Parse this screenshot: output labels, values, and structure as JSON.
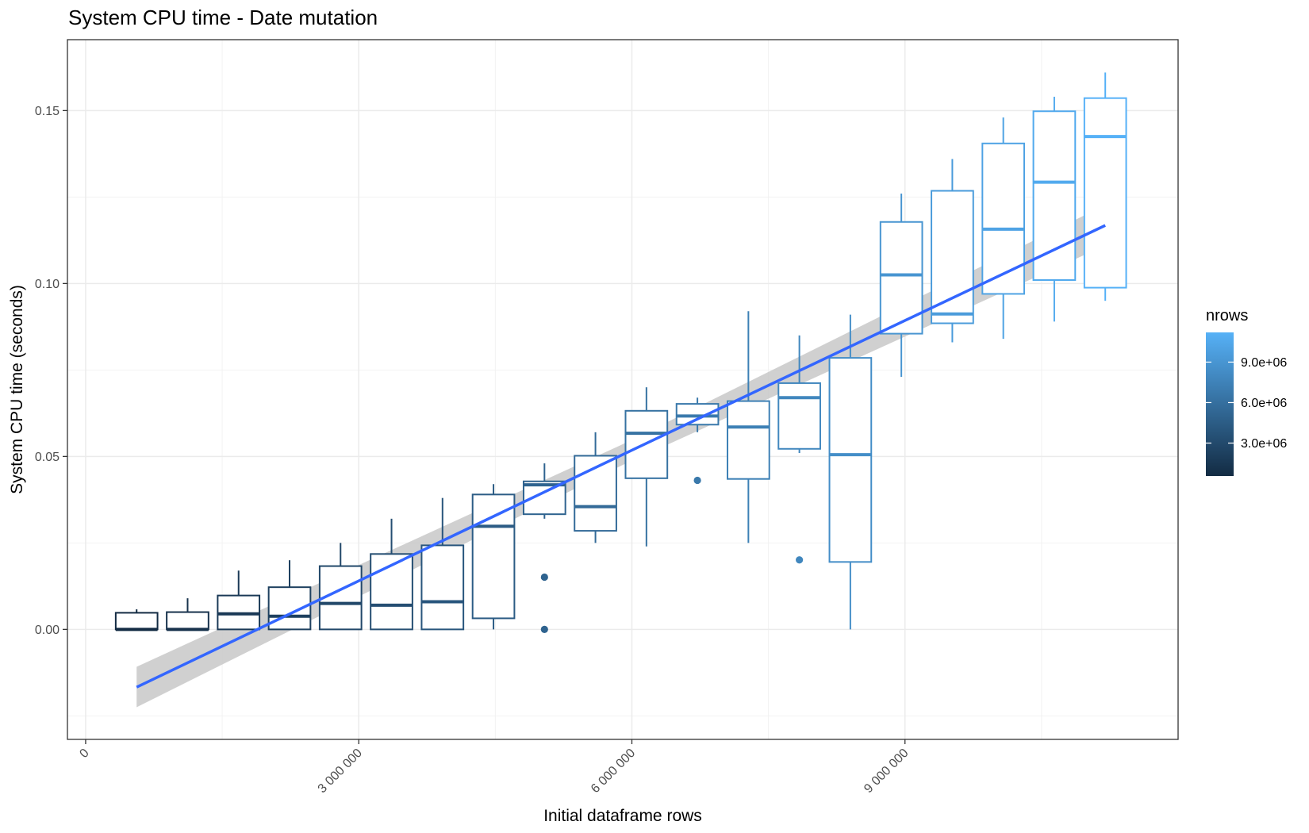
{
  "chart_data": {
    "type": "box",
    "title": "System CPU time - Date mutation",
    "xlabel": "Initial dataframe rows",
    "ylabel": "System CPU time (seconds)",
    "xlim": [
      -200000,
      12000000
    ],
    "ylim": [
      -0.0318,
      0.1705
    ],
    "x_ticks": [
      {
        "value": 0,
        "label": "0"
      },
      {
        "value": 3000000,
        "label": "3 000 000"
      },
      {
        "value": 6000000,
        "label": "6 000 000"
      },
      {
        "value": 9000000,
        "label": "9 000 000"
      }
    ],
    "y_ticks": [
      {
        "value": 0.0,
        "label": "0.00"
      },
      {
        "value": 0.05,
        "label": "0.05"
      },
      {
        "value": 0.1,
        "label": "0.10"
      },
      {
        "value": 0.15,
        "label": "0.15"
      }
    ],
    "grid": true,
    "color_scale": {
      "name": "nrows",
      "low_color": "#132b43",
      "high_color": "#56b1f7",
      "min": 560000,
      "max": 11200000,
      "legend_ticks": [
        {
          "value": 3000000,
          "label": "3.0e+06"
        },
        {
          "value": 6000000,
          "label": "6.0e+06"
        },
        {
          "value": 9000000,
          "label": "9.0e+06"
        }
      ],
      "legend_position": "right"
    },
    "boxes": [
      {
        "x": 560000,
        "low": 0.0,
        "q1": 0.0,
        "median": 0.0,
        "q3": 0.0048,
        "high": 0.0058,
        "outliers": []
      },
      {
        "x": 1120000,
        "low": 0.0,
        "q1": 0.0,
        "median": 0.0,
        "q3": 0.005,
        "high": 0.009,
        "outliers": []
      },
      {
        "x": 1680000,
        "low": 0.0,
        "q1": 0.0,
        "median": 0.0045,
        "q3": 0.0098,
        "high": 0.017,
        "outliers": []
      },
      {
        "x": 2240000,
        "low": 0.0,
        "q1": 0.0,
        "median": 0.0038,
        "q3": 0.0122,
        "high": 0.02,
        "outliers": []
      },
      {
        "x": 2800000,
        "low": 0.0,
        "q1": 0.0,
        "median": 0.0075,
        "q3": 0.0183,
        "high": 0.025,
        "outliers": []
      },
      {
        "x": 3360000,
        "low": 0.0,
        "q1": 0.0,
        "median": 0.007,
        "q3": 0.0218,
        "high": 0.032,
        "outliers": []
      },
      {
        "x": 3920000,
        "low": 0.0,
        "q1": 0.0,
        "median": 0.008,
        "q3": 0.0243,
        "high": 0.038,
        "outliers": []
      },
      {
        "x": 4480000,
        "low": 0.0,
        "q1": 0.0032,
        "median": 0.0298,
        "q3": 0.039,
        "high": 0.042,
        "outliers": []
      },
      {
        "x": 5040000,
        "low": 0.032,
        "q1": 0.0333,
        "median": 0.0418,
        "q3": 0.0428,
        "high": 0.048,
        "outliers": [
          0.0151,
          0.0
        ]
      },
      {
        "x": 5600000,
        "low": 0.025,
        "q1": 0.0285,
        "median": 0.0355,
        "q3": 0.0502,
        "high": 0.057,
        "outliers": []
      },
      {
        "x": 6160000,
        "low": 0.024,
        "q1": 0.0437,
        "median": 0.0567,
        "q3": 0.0632,
        "high": 0.07,
        "outliers": []
      },
      {
        "x": 6720000,
        "low": 0.057,
        "q1": 0.0592,
        "median": 0.0617,
        "q3": 0.0652,
        "high": 0.067,
        "outliers": [
          0.0431
        ]
      },
      {
        "x": 7280000,
        "low": 0.025,
        "q1": 0.0435,
        "median": 0.0585,
        "q3": 0.066,
        "high": 0.092,
        "outliers": []
      },
      {
        "x": 7840000,
        "low": 0.051,
        "q1": 0.0522,
        "median": 0.067,
        "q3": 0.0712,
        "high": 0.085,
        "outliers": [
          0.0201
        ]
      },
      {
        "x": 8400000,
        "low": 0.0,
        "q1": 0.0195,
        "median": 0.0505,
        "q3": 0.0785,
        "high": 0.091,
        "outliers": []
      },
      {
        "x": 8960000,
        "low": 0.073,
        "q1": 0.0855,
        "median": 0.1025,
        "q3": 0.1178,
        "high": 0.126,
        "outliers": []
      },
      {
        "x": 9520000,
        "low": 0.083,
        "q1": 0.0885,
        "median": 0.0912,
        "q3": 0.1268,
        "high": 0.136,
        "outliers": []
      },
      {
        "x": 10080000,
        "low": 0.084,
        "q1": 0.097,
        "median": 0.1157,
        "q3": 0.1405,
        "high": 0.148,
        "outliers": []
      },
      {
        "x": 10640000,
        "low": 0.089,
        "q1": 0.101,
        "median": 0.1293,
        "q3": 0.1498,
        "high": 0.154,
        "outliers": []
      },
      {
        "x": 11200000,
        "low": 0.095,
        "q1": 0.0988,
        "median": 0.1425,
        "q3": 0.1536,
        "high": 0.161,
        "outliers": []
      }
    ],
    "smooth": {
      "method": "linear",
      "color": "#3366ff",
      "band_color": "#c8c8c8",
      "points": [
        {
          "x": 560000,
          "y": -0.0167,
          "ymin": -0.0225,
          "ymax": -0.0108
        },
        {
          "x": 5880000,
          "y": 0.0503,
          "ymin": 0.0473,
          "ymax": 0.0533
        },
        {
          "x": 11200000,
          "y": 0.1168,
          "ymin": 0.111,
          "ymax": 0.1227
        }
      ]
    }
  }
}
